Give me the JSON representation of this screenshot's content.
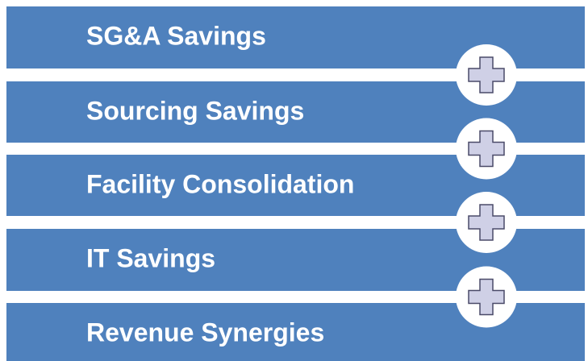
{
  "items": [
    {
      "label": "SG&A Savings"
    },
    {
      "label": "Sourcing Savings"
    },
    {
      "label": "Facility Consolidation"
    },
    {
      "label": "IT Savings"
    },
    {
      "label": "Revenue Synergies"
    }
  ]
}
